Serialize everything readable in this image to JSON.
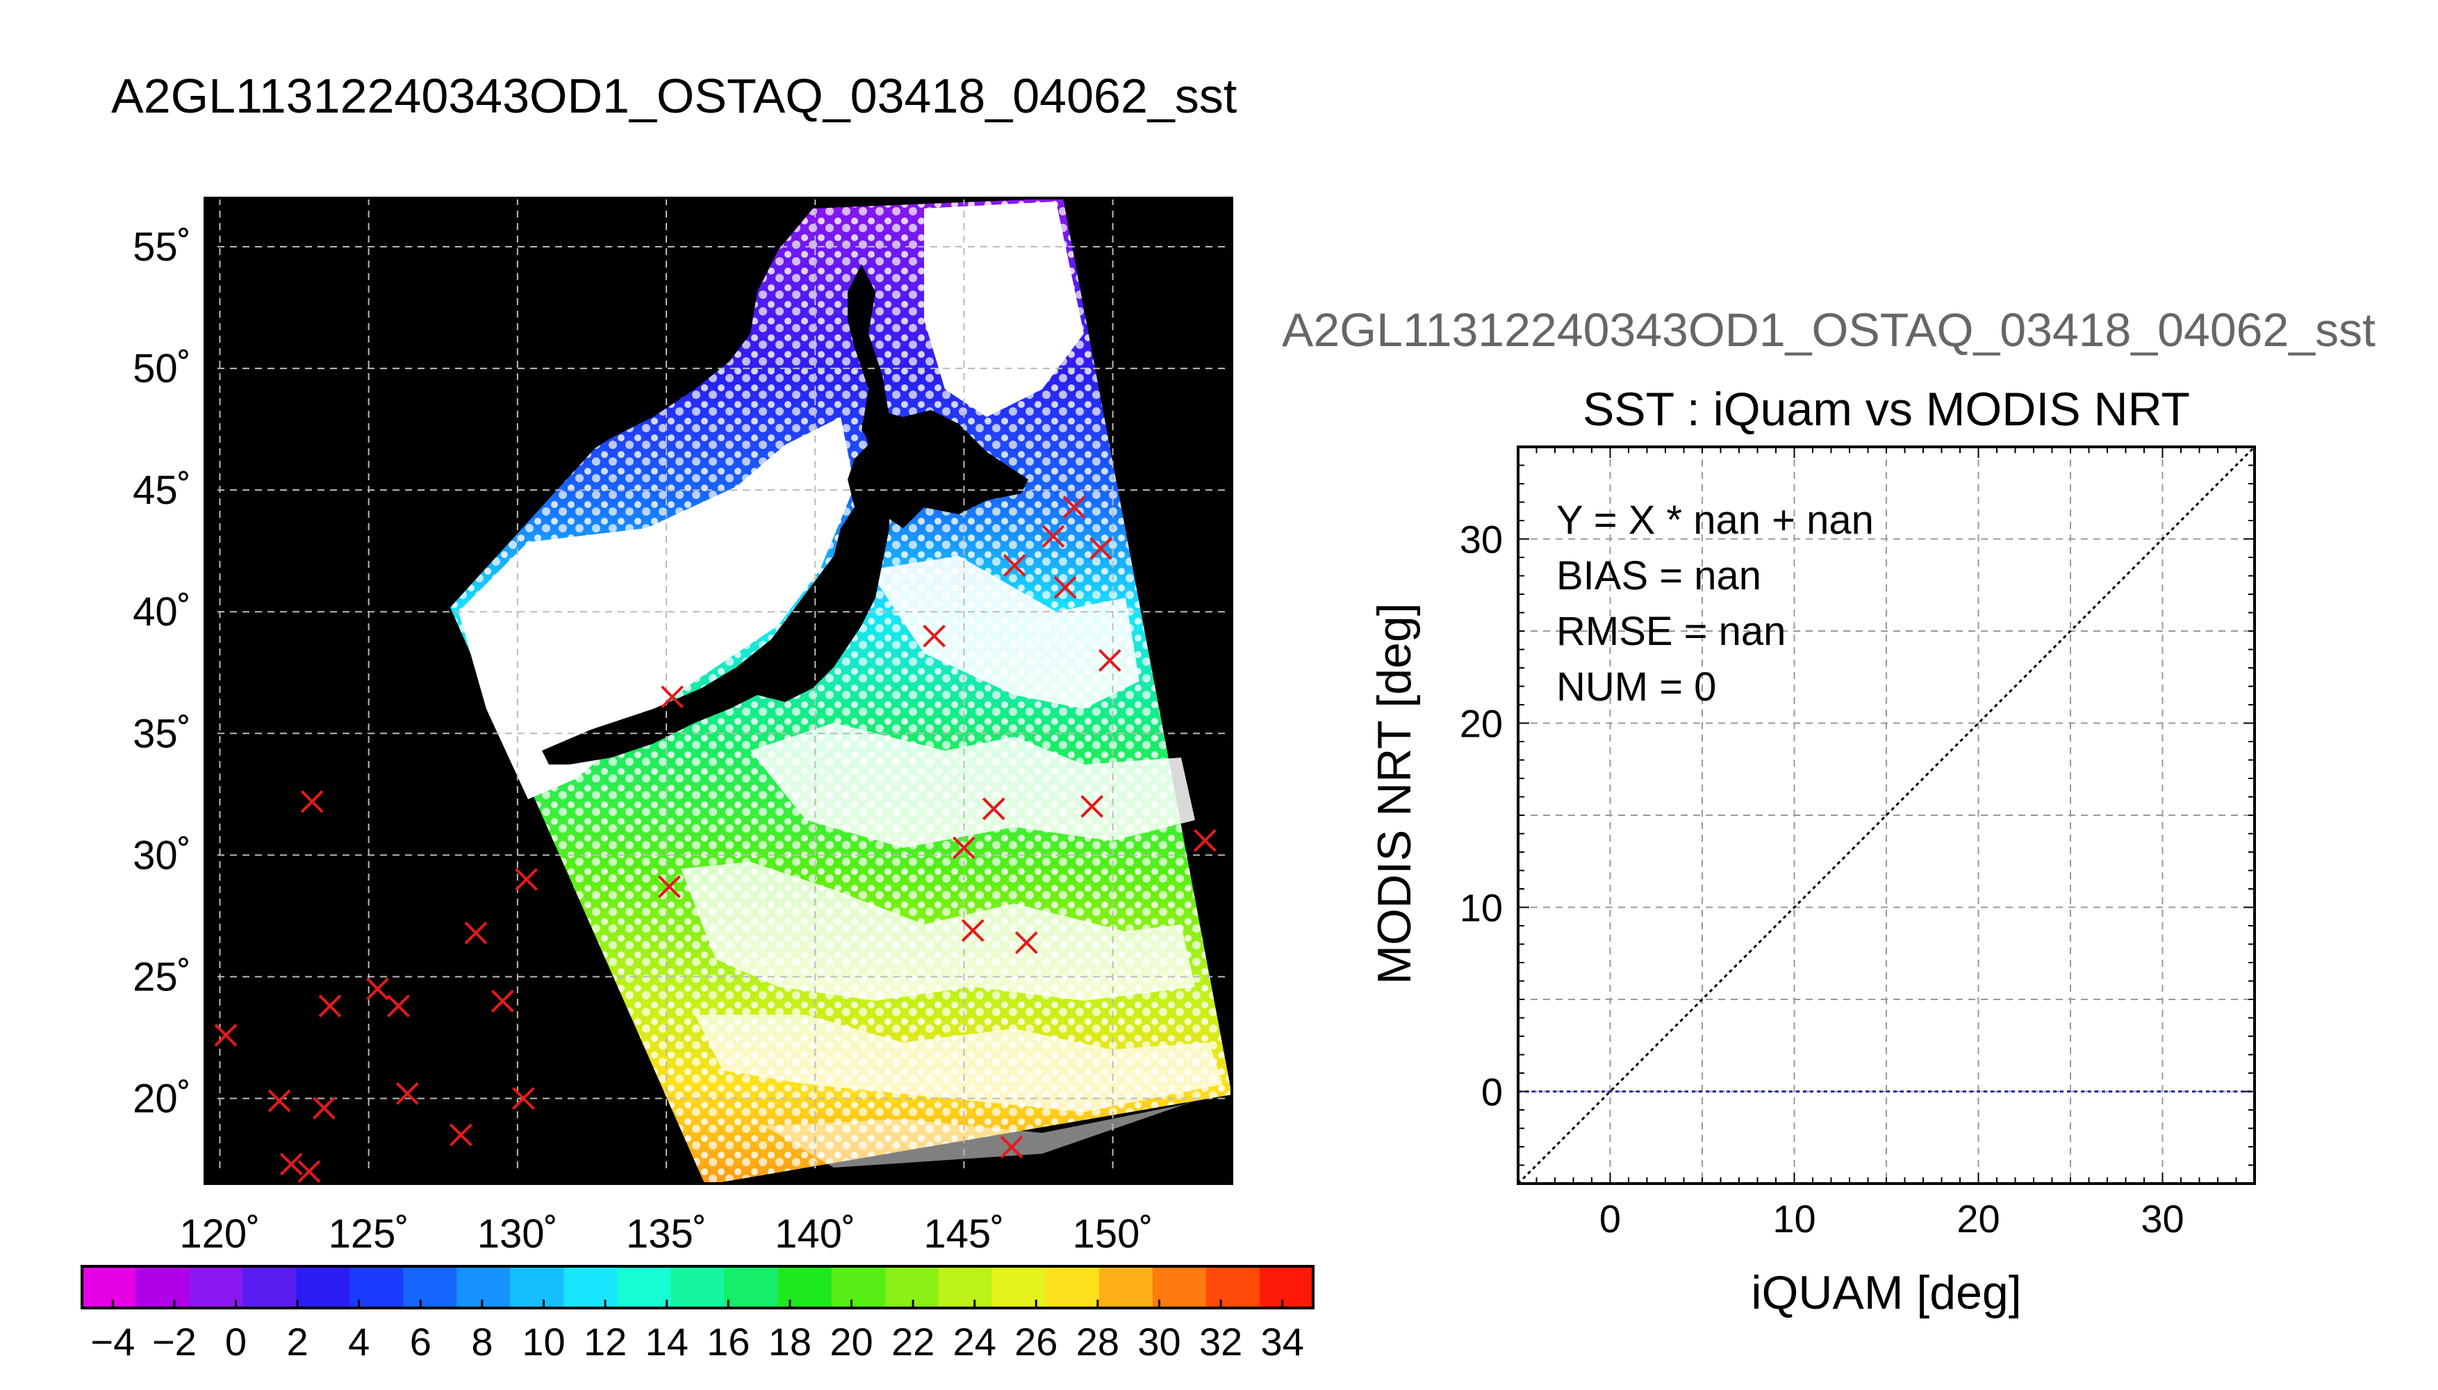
{
  "page_title": "A2GL11312240343OD1_OSTAQ_03418_04062_sst",
  "chart_data": [
    {
      "type": "map",
      "title": "A2GL11312240343OD1_OSTAQ_03418_04062_sst",
      "xlim": [
        119.5,
        154
      ],
      "ylim": [
        16.5,
        57
      ],
      "xticks": [
        120,
        125,
        130,
        135,
        140,
        145,
        150
      ],
      "yticks": [
        20,
        25,
        30,
        35,
        40,
        45,
        50,
        55
      ],
      "xtick_labels": [
        "120˚",
        "125˚",
        "130˚",
        "135˚",
        "140˚",
        "145˚",
        "150˚"
      ],
      "ytick_labels": [
        "20˚",
        "25˚",
        "30˚",
        "35˚",
        "40˚",
        "45˚",
        "50˚",
        "55˚"
      ],
      "grid": true,
      "marker": "x",
      "marker_color": "#e31a1c",
      "colorbar": {
        "min": -5,
        "max": 35,
        "ticks": [
          -4,
          -2,
          0,
          2,
          4,
          6,
          8,
          10,
          12,
          14,
          16,
          18,
          20,
          22,
          24,
          26,
          28,
          30,
          32,
          34
        ],
        "tick_labels": [
          "−4",
          "−2",
          "0",
          "2",
          "4",
          "6",
          "8",
          "10",
          "12",
          "14",
          "16",
          "18",
          "20",
          "22",
          "24",
          "26",
          "28",
          "30",
          "32",
          "34"
        ],
        "colors": [
          "#e500e5",
          "#b000e8",
          "#8a18f0",
          "#5a1ef2",
          "#2a1ef5",
          "#1a3cff",
          "#1766ff",
          "#1692ff",
          "#17bfff",
          "#18e6ff",
          "#18ffd6",
          "#16f5a0",
          "#16ed6a",
          "#1ee81e",
          "#56ee16",
          "#8af016",
          "#bdf218",
          "#e6f21e",
          "#ffe01c",
          "#ffb015",
          "#ff7a10",
          "#ff4a0a",
          "#ff1a08"
        ]
      },
      "points": [
        {
          "lon": 120.2,
          "lat": 22.6
        },
        {
          "lon": 122.0,
          "lat": 19.9
        },
        {
          "lon": 122.4,
          "lat": 17.3
        },
        {
          "lon": 123.0,
          "lat": 17.0
        },
        {
          "lon": 123.1,
          "lat": 32.2
        },
        {
          "lon": 123.5,
          "lat": 19.6
        },
        {
          "lon": 123.7,
          "lat": 23.8
        },
        {
          "lon": 125.3,
          "lat": 24.5
        },
        {
          "lon": 126.0,
          "lat": 23.8
        },
        {
          "lon": 126.3,
          "lat": 20.2
        },
        {
          "lon": 128.1,
          "lat": 18.5
        },
        {
          "lon": 128.6,
          "lat": 26.8
        },
        {
          "lon": 129.5,
          "lat": 24.0
        },
        {
          "lon": 130.3,
          "lat": 29.0
        },
        {
          "lon": 130.2,
          "lat": 20.0
        },
        {
          "lon": 135.1,
          "lat": 28.7
        },
        {
          "lon": 135.2,
          "lat": 36.5
        },
        {
          "lon": 144.0,
          "lat": 39.0
        },
        {
          "lon": 145.0,
          "lat": 30.3
        },
        {
          "lon": 145.3,
          "lat": 26.9
        },
        {
          "lon": 146.0,
          "lat": 31.9
        },
        {
          "lon": 146.7,
          "lat": 41.9
        },
        {
          "lon": 146.6,
          "lat": 18.0
        },
        {
          "lon": 147.1,
          "lat": 26.4
        },
        {
          "lon": 148.0,
          "lat": 43.1
        },
        {
          "lon": 148.4,
          "lat": 41.0
        },
        {
          "lon": 148.7,
          "lat": 44.3
        },
        {
          "lon": 149.3,
          "lat": 32.0
        },
        {
          "lon": 149.6,
          "lat": 42.6
        },
        {
          "lon": 149.9,
          "lat": 38.0
        },
        {
          "lon": 153.1,
          "lat": 30.6
        }
      ]
    },
    {
      "type": "scatter",
      "suptitle": "A2GL11312240343OD1_OSTAQ_03418_04062_sst",
      "title": "SST : iQuam vs MODIS NRT",
      "xlabel": "iQUAM [deg]",
      "ylabel": "MODIS NRT [deg]",
      "xlim": [
        -5,
        35
      ],
      "ylim": [
        -5,
        35
      ],
      "xticks": [
        0,
        10,
        20,
        30
      ],
      "yticks": [
        0,
        10,
        20,
        30
      ],
      "grid": true,
      "stats": [
        "Y = X * nan + nan",
        "BIAS = nan",
        "RMSE = nan",
        "NUM = 0"
      ],
      "series": [],
      "reference_lines": [
        {
          "kind": "identity",
          "x": [
            -5,
            35
          ],
          "y": [
            -5,
            35
          ],
          "color": "#000000",
          "style": "dotted"
        },
        {
          "kind": "zero",
          "x": [
            -5,
            35
          ],
          "y": [
            0,
            0
          ],
          "color": "#2020b0",
          "style": "dotted"
        }
      ]
    }
  ]
}
